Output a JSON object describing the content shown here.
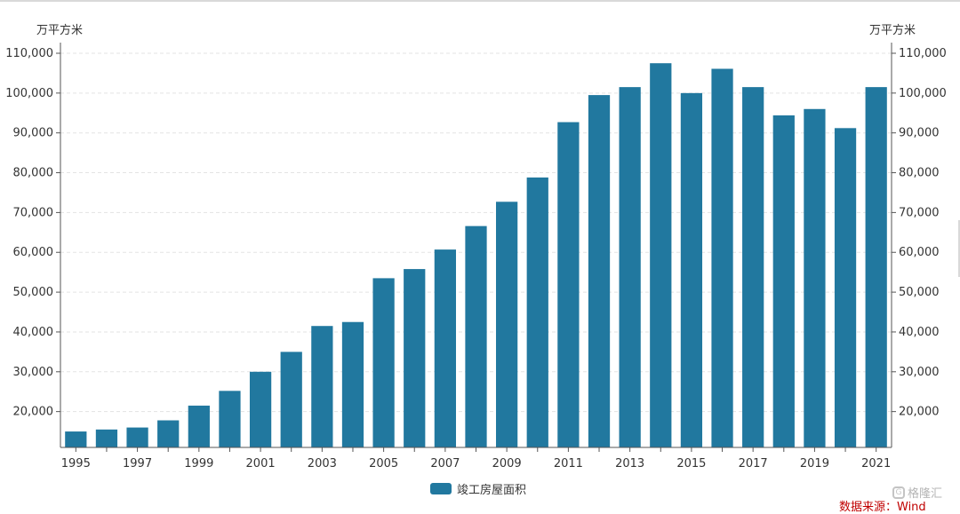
{
  "watermark": {
    "mark": "G",
    "text": "格隆汇"
  },
  "source": "数据来源：Wind",
  "chart_data": {
    "type": "bar",
    "title": "",
    "y_unit_left": "万平方米",
    "y_unit_right": "万平方米",
    "ylim": [
      11000,
      110000
    ],
    "yticks": [
      20000,
      30000,
      40000,
      50000,
      60000,
      70000,
      80000,
      90000,
      100000,
      110000
    ],
    "ytick_labels": [
      "20,000",
      "30,000",
      "40,000",
      "50,000",
      "60,000",
      "70,000",
      "80,000",
      "90,000",
      "100,000",
      "110,000"
    ],
    "grid": true,
    "legend_position": "bottom-center",
    "categories": [
      "1995",
      "1996",
      "1997",
      "1998",
      "1999",
      "2000",
      "2001",
      "2002",
      "2003",
      "2004",
      "2005",
      "2006",
      "2007",
      "2008",
      "2009",
      "2010",
      "2011",
      "2012",
      "2013",
      "2014",
      "2015",
      "2016",
      "2017",
      "2018",
      "2019",
      "2020",
      "2021"
    ],
    "xtick_labels": [
      "1995",
      "1997",
      "1999",
      "2001",
      "2003",
      "2005",
      "2007",
      "2009",
      "2011",
      "2013",
      "2015",
      "2017",
      "2019",
      "2021"
    ],
    "series": [
      {
        "name": "竣工房屋面积",
        "color": "#21789f",
        "values": [
          15000,
          15500,
          16000,
          17800,
          21500,
          25200,
          30000,
          35000,
          41500,
          42500,
          53500,
          55800,
          60700,
          66600,
          72700,
          78800,
          92700,
          99500,
          101500,
          107500,
          100000,
          106100,
          101500,
          94400,
          96000,
          91200,
          101500
        ]
      }
    ]
  }
}
